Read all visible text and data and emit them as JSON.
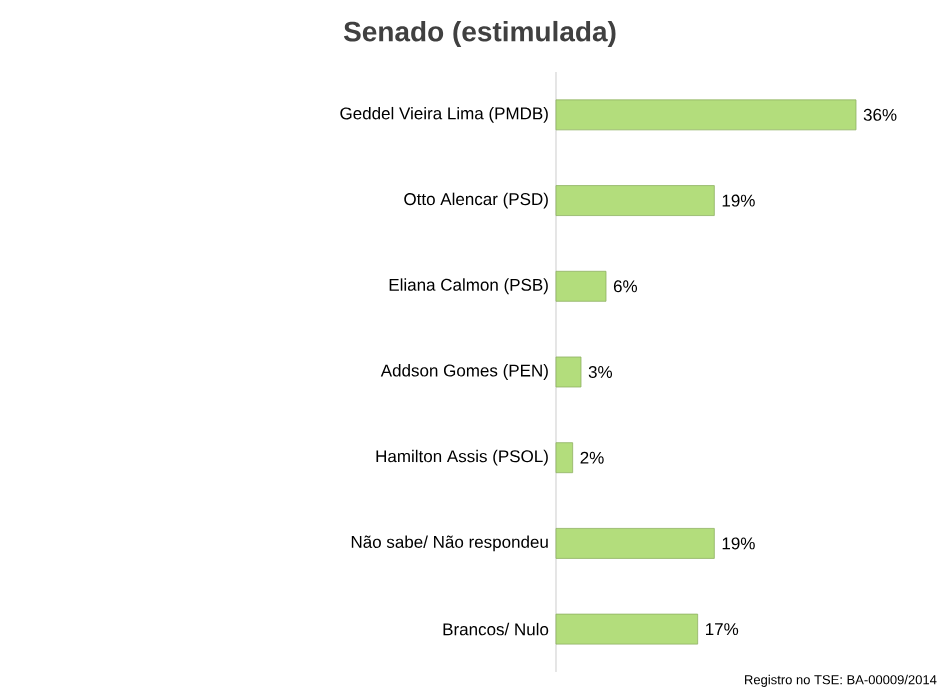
{
  "chart_data": {
    "type": "bar",
    "orientation": "horizontal",
    "title": "Senado (estimulada)",
    "categories": [
      "Geddel Vieira Lima (PMDB)",
      "Otto Alencar (PSD)",
      "Eliana Calmon (PSB)",
      "Addson Gomes (PEN)",
      "Hamilton Assis (PSOL)",
      "Não sabe/ Não respondeu",
      "Brancos/ Nulo"
    ],
    "values": [
      36,
      19,
      6,
      3,
      2,
      19,
      17
    ],
    "value_labels": [
      "36%",
      "19%",
      "6%",
      "3%",
      "2%",
      "19%",
      "17%"
    ],
    "color": "#b3dd7c",
    "annotations": [
      "Registro no TSE: BA-00009/2014"
    ]
  }
}
